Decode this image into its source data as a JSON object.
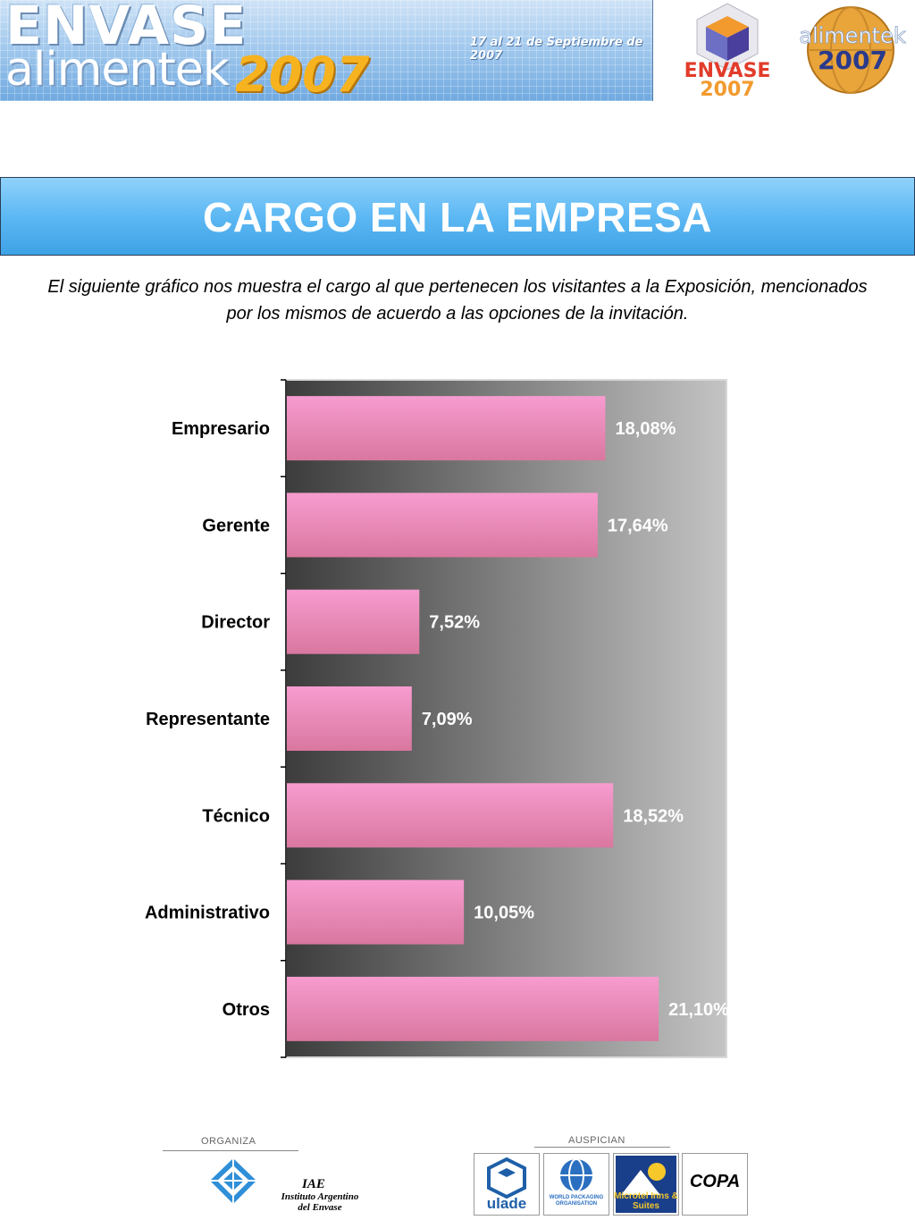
{
  "header": {
    "brand_top": "ENVASE",
    "brand_bottom": "alimentek",
    "brand_year": "2007",
    "dates": "17 al 21 de Septiembre de 2007",
    "logo_left_word": "ENVASE",
    "logo_left_year": "2007",
    "logo_right_word": "alimentek",
    "logo_right_year": "2007"
  },
  "page_title": "CARGO EN LA EMPRESA",
  "intro_text": "El siguiente gráfico nos muestra el cargo al que pertenecen los visitantes a la Exposición, mencionados por los mismos de acuerdo a las opciones de la invitación.",
  "chart_data": {
    "type": "bar",
    "orientation": "horizontal",
    "categories": [
      "Empresario",
      "Gerente",
      "Director",
      "Representante",
      "Técnico",
      "Administrativo",
      "Otros"
    ],
    "values": [
      18.08,
      17.64,
      7.52,
      7.09,
      18.52,
      10.05,
      21.1
    ],
    "data_labels": [
      "18,08%",
      "17,64%",
      "7,52%",
      "7,09%",
      "18,52%",
      "10,05%",
      "21,10%"
    ],
    "xlim": [
      0,
      25
    ],
    "grid": false,
    "legend": "none",
    "colors": {
      "bar_top": "#f79cd0",
      "bar_bottom": "#d9779f",
      "plot_bg_left": "#3c3c3c",
      "plot_bg_right": "#c4c4c4",
      "data_label": "#ffffff"
    }
  },
  "footer": {
    "organiza_label": "ORGANIZA",
    "iae_name": "IAE",
    "iae_full_line1": "Instituto Argentino",
    "iae_full_line2": "del Envase",
    "auspician_label": "AUSPICIAN",
    "sponsors": [
      {
        "name": "ulade",
        "icon": "cube-logo-icon"
      },
      {
        "name": "WORLD PACKAGING ORGANISATION",
        "icon": "globe-logo-icon"
      },
      {
        "name": "Microtel Inns & Suites",
        "icon": "mountain-sun-icon"
      },
      {
        "name": "COPA",
        "icon": "copa-wordmark-icon"
      }
    ]
  }
}
